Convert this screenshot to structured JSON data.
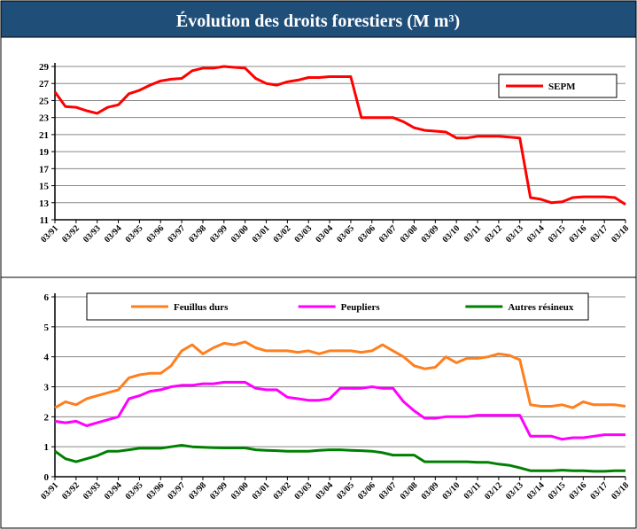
{
  "title": "Évolution des droits forestiers (M m³)",
  "chart_data": [
    {
      "type": "line",
      "categories": [
        "03/91",
        null,
        "03/92",
        null,
        "03/93",
        null,
        "03/94",
        null,
        "03/95",
        null,
        "03/96",
        null,
        "03/97",
        null,
        "03/98",
        null,
        "03/99",
        null,
        "03/00",
        null,
        "03/01",
        null,
        "03/02",
        null,
        "03/03",
        null,
        "03/04",
        null,
        "03/05",
        null,
        "03/06",
        null,
        "03/07",
        null,
        "03/08",
        null,
        "03/09",
        null,
        "03/10",
        null,
        "03/11",
        null,
        "03/12",
        null,
        "03/13",
        null,
        "03/14",
        null,
        "03/15",
        null,
        "03/16",
        null,
        "03/17",
        null,
        "03/18"
      ],
      "series": [
        {
          "name": "SEPM",
          "color": "#ff0000",
          "values": [
            26,
            24.3,
            24.2,
            23.8,
            23.5,
            24.2,
            24.5,
            25.8,
            26.2,
            26.8,
            27.3,
            27.5,
            27.6,
            28.5,
            28.8,
            28.8,
            29,
            28.9,
            28.8,
            27.6,
            27,
            26.8,
            27.2,
            27.4,
            27.7,
            27.7,
            27.8,
            27.8,
            27.8,
            23,
            23,
            23,
            23,
            22.5,
            21.8,
            21.5,
            21.4,
            21.3,
            20.6,
            20.6,
            20.8,
            20.8,
            20.8,
            20.7,
            20.6,
            13.6,
            13.4,
            13,
            13.1,
            13.6,
            13.7,
            13.7,
            13.7,
            13.6,
            12.8
          ]
        }
      ],
      "ylim": [
        11,
        29
      ],
      "yticks": [
        11,
        13,
        15,
        17,
        19,
        21,
        23,
        25,
        27,
        29
      ],
      "grid": true,
      "legend": "top-right"
    },
    {
      "type": "line",
      "categories": [
        "03/91",
        null,
        "03/92",
        null,
        "03/93",
        null,
        "03/94",
        null,
        "03/95",
        null,
        "03/96",
        null,
        "03/97",
        null,
        "03/98",
        null,
        "03/99",
        null,
        "03/00",
        null,
        "03/01",
        null,
        "03/02",
        null,
        "03/03",
        null,
        "03/04",
        null,
        "03/05",
        null,
        "03/06",
        null,
        "03/07",
        null,
        "03/08",
        null,
        "03/09",
        null,
        "03/10",
        null,
        "03/11",
        null,
        "03/12",
        null,
        "03/13",
        null,
        "03/14",
        null,
        "03/15",
        null,
        "03/16",
        null,
        "03/17",
        null,
        "03/18"
      ],
      "series": [
        {
          "name": "Feuillus durs",
          "color": "#ff7f1e",
          "values": [
            2.3,
            2.5,
            2.4,
            2.6,
            2.7,
            2.8,
            2.9,
            3.3,
            3.4,
            3.45,
            3.45,
            3.7,
            4.2,
            4.4,
            4.1,
            4.3,
            4.45,
            4.4,
            4.5,
            4.3,
            4.2,
            4.2,
            4.2,
            4.15,
            4.2,
            4.1,
            4.2,
            4.2,
            4.2,
            4.15,
            4.2,
            4.4,
            4.2,
            4,
            3.7,
            3.6,
            3.65,
            4,
            3.8,
            3.95,
            3.95,
            4,
            4.1,
            4.05,
            3.9,
            2.4,
            2.35,
            2.35,
            2.4,
            2.3,
            2.5,
            2.4,
            2.4,
            2.4,
            2.35
          ]
        },
        {
          "name": "Peupliers",
          "color": "#ff00ff",
          "values": [
            1.85,
            1.8,
            1.85,
            1.7,
            1.8,
            1.9,
            2,
            2.6,
            2.7,
            2.85,
            2.9,
            3,
            3.05,
            3.05,
            3.1,
            3.1,
            3.15,
            3.15,
            3.15,
            2.95,
            2.9,
            2.9,
            2.65,
            2.6,
            2.55,
            2.55,
            2.6,
            2.95,
            2.95,
            2.95,
            3,
            2.95,
            2.95,
            2.5,
            2.2,
            1.95,
            1.95,
            2,
            2,
            2,
            2.05,
            2.05,
            2.05,
            2.05,
            2.05,
            1.35,
            1.35,
            1.35,
            1.25,
            1.3,
            1.3,
            1.35,
            1.4,
            1.4,
            1.4
          ]
        },
        {
          "name": "Autres résineux",
          "color": "#008000",
          "values": [
            0.85,
            0.6,
            0.5,
            0.6,
            0.7,
            0.85,
            0.85,
            0.9,
            0.95,
            0.95,
            0.95,
            1,
            1.05,
            1,
            0.98,
            0.97,
            0.96,
            0.96,
            0.96,
            0.9,
            0.88,
            0.87,
            0.85,
            0.85,
            0.85,
            0.88,
            0.9,
            0.9,
            0.88,
            0.87,
            0.85,
            0.8,
            0.72,
            0.72,
            0.72,
            0.5,
            0.5,
            0.5,
            0.5,
            0.5,
            0.48,
            0.48,
            0.42,
            0.38,
            0.3,
            0.2,
            0.2,
            0.2,
            0.22,
            0.2,
            0.2,
            0.18,
            0.18,
            0.2,
            0.2
          ]
        }
      ],
      "ylim": [
        0,
        6
      ],
      "yticks": [
        0,
        1,
        2,
        3,
        4,
        5,
        6
      ],
      "grid": true,
      "legend": "top"
    }
  ]
}
